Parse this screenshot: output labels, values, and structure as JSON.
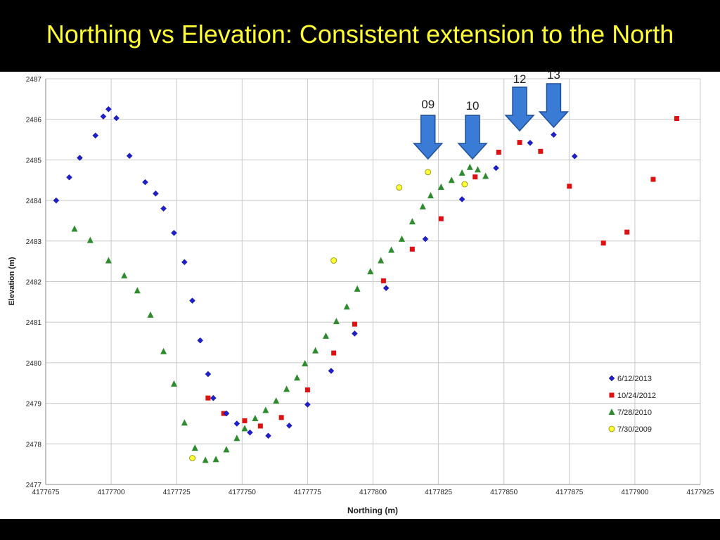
{
  "page": {
    "title": "Northing vs Elevation:  Consistent extension to the North"
  },
  "chart_data": {
    "type": "scatter",
    "xlabel": "Northing (m)",
    "ylabel": "Elevation (m)",
    "xlim": [
      4177675,
      4177925
    ],
    "ylim": [
      2477,
      2487
    ],
    "xticks": [
      4177675,
      4177700,
      4177725,
      4177750,
      4177775,
      4177800,
      4177825,
      4177850,
      4177875,
      4177900,
      4177925
    ],
    "yticks": [
      2477,
      2478,
      2479,
      2480,
      2481,
      2482,
      2483,
      2484,
      2485,
      2486,
      2487
    ],
    "grid": true,
    "legend": "right",
    "series": [
      {
        "name": "6/12/2013",
        "marker": "diamond",
        "color": "#1f1fcc",
        "points": [
          [
            4177679,
            2484.0
          ],
          [
            4177684,
            2484.57
          ],
          [
            4177688,
            2485.05
          ],
          [
            4177694,
            2485.6
          ],
          [
            4177697,
            2486.07
          ],
          [
            4177699,
            2486.25
          ],
          [
            4177702,
            2486.03
          ],
          [
            4177707,
            2485.1
          ],
          [
            4177713,
            2484.45
          ],
          [
            4177717,
            2484.17
          ],
          [
            4177720,
            2483.8
          ],
          [
            4177724,
            2483.2
          ],
          [
            4177728,
            2482.48
          ],
          [
            4177731,
            2481.53
          ],
          [
            4177734,
            2480.55
          ],
          [
            4177737,
            2479.72
          ],
          [
            4177739,
            2479.13
          ],
          [
            4177744,
            2478.75
          ],
          [
            4177748,
            2478.5
          ],
          [
            4177753,
            2478.28
          ],
          [
            4177760,
            2478.2
          ],
          [
            4177768,
            2478.45
          ],
          [
            4177775,
            2478.97
          ],
          [
            4177784,
            2479.8
          ],
          [
            4177793,
            2480.72
          ],
          [
            4177805,
            2481.84
          ],
          [
            4177820,
            2483.05
          ],
          [
            4177834,
            2484.03
          ],
          [
            4177847,
            2484.8
          ],
          [
            4177860,
            2485.42
          ],
          [
            4177869,
            2485.62
          ],
          [
            4177877,
            2485.09
          ]
        ]
      },
      {
        "name": "10/24/2012",
        "marker": "square",
        "color": "#dd1111",
        "points": [
          [
            4177737,
            2479.13
          ],
          [
            4177743,
            2478.75
          ],
          [
            4177751,
            2478.57
          ],
          [
            4177757,
            2478.44
          ],
          [
            4177765,
            2478.65
          ],
          [
            4177775,
            2479.33
          ],
          [
            4177785,
            2480.24
          ],
          [
            4177793,
            2480.95
          ],
          [
            4177804,
            2482.02
          ],
          [
            4177815,
            2482.8
          ],
          [
            4177826,
            2483.55
          ],
          [
            4177839,
            2484.58
          ],
          [
            4177848,
            2485.19
          ],
          [
            4177856,
            2485.43
          ],
          [
            4177864,
            2485.21
          ],
          [
            4177875,
            2484.35
          ],
          [
            4177888,
            2482.95
          ],
          [
            4177897,
            2483.22
          ],
          [
            4177907,
            2484.52
          ],
          [
            4177916,
            2486.02
          ]
        ]
      },
      {
        "name": "7/28/2010",
        "marker": "triangle",
        "color": "#2e8b2e",
        "points": [
          [
            4177686,
            2483.3
          ],
          [
            4177692,
            2483.02
          ],
          [
            4177699,
            2482.52
          ],
          [
            4177705,
            2482.15
          ],
          [
            4177710,
            2481.78
          ],
          [
            4177715,
            2481.18
          ],
          [
            4177720,
            2480.28
          ],
          [
            4177724,
            2479.48
          ],
          [
            4177728,
            2478.52
          ],
          [
            4177732,
            2477.9
          ],
          [
            4177736,
            2477.6
          ],
          [
            4177740,
            2477.62
          ],
          [
            4177744,
            2477.86
          ],
          [
            4177748,
            2478.14
          ],
          [
            4177751,
            2478.38
          ],
          [
            4177755,
            2478.63
          ],
          [
            4177759,
            2478.83
          ],
          [
            4177763,
            2479.06
          ],
          [
            4177767,
            2479.35
          ],
          [
            4177771,
            2479.63
          ],
          [
            4177774,
            2479.98
          ],
          [
            4177778,
            2480.3
          ],
          [
            4177782,
            2480.66
          ],
          [
            4177786,
            2481.02
          ],
          [
            4177790,
            2481.38
          ],
          [
            4177794,
            2481.82
          ],
          [
            4177799,
            2482.25
          ],
          [
            4177803,
            2482.52
          ],
          [
            4177807,
            2482.78
          ],
          [
            4177811,
            2483.05
          ],
          [
            4177815,
            2483.48
          ],
          [
            4177819,
            2483.85
          ],
          [
            4177822,
            2484.12
          ],
          [
            4177826,
            2484.33
          ],
          [
            4177830,
            2484.5
          ],
          [
            4177834,
            2484.68
          ],
          [
            4177837,
            2484.82
          ],
          [
            4177840,
            2484.76
          ],
          [
            4177843,
            2484.6
          ]
        ]
      },
      {
        "name": "7/30/2009",
        "marker": "circle",
        "color": "#ffff33",
        "points": [
          [
            4177731,
            2477.65
          ],
          [
            4177785,
            2482.52
          ],
          [
            4177810,
            2484.32
          ],
          [
            4177821,
            2484.7
          ],
          [
            4177835,
            2484.4
          ]
        ]
      }
    ],
    "annotations": [
      {
        "label": "09",
        "x": 4177821
      },
      {
        "label": "10",
        "x": 4177838
      },
      {
        "label": "12",
        "x": 4177856
      },
      {
        "label": "13",
        "x": 4177869
      }
    ]
  }
}
